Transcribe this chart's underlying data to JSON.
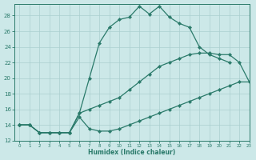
{
  "xlabel": "Humidex (Indice chaleur)",
  "bg_color": "#cce8e8",
  "line_color": "#2a7a6a",
  "grid_color": "#aacfcf",
  "xlim": [
    -0.5,
    23
  ],
  "ylim": [
    12,
    29.5
  ],
  "xticks": [
    0,
    1,
    2,
    3,
    4,
    5,
    6,
    7,
    8,
    9,
    10,
    11,
    12,
    13,
    14,
    15,
    16,
    17,
    18,
    19,
    20,
    21,
    22,
    23
  ],
  "yticks": [
    12,
    14,
    16,
    18,
    20,
    22,
    24,
    26,
    28
  ],
  "line1_x": [
    0,
    1,
    2,
    3,
    4,
    5,
    6,
    7,
    8,
    9,
    10,
    11,
    12,
    13,
    14,
    15,
    16,
    17,
    18,
    19,
    20,
    21
  ],
  "line1_y": [
    14,
    14,
    13,
    13,
    13,
    13,
    15.5,
    20,
    24.5,
    26.5,
    27.5,
    27.8,
    29.2,
    28.2,
    29.2,
    27.8,
    27,
    26.5,
    24,
    23,
    22.5,
    22
  ],
  "line2_x": [
    0,
    1,
    2,
    3,
    4,
    5,
    6,
    7,
    8,
    9,
    10,
    11,
    12,
    13,
    14,
    15,
    16,
    17,
    18,
    19,
    20,
    21,
    22,
    23
  ],
  "line2_y": [
    14,
    14,
    13,
    13,
    13,
    13,
    15.5,
    16,
    16.5,
    17,
    17.5,
    18.5,
    19.5,
    20.5,
    21.5,
    22,
    22.5,
    23,
    23.2,
    23.2,
    23,
    23,
    22,
    19.5
  ],
  "line3_x": [
    0,
    1,
    2,
    3,
    4,
    5,
    6,
    7,
    8,
    9,
    10,
    11,
    12,
    13,
    14,
    15,
    16,
    17,
    18,
    19,
    20,
    21,
    22,
    23
  ],
  "line3_y": [
    14,
    14,
    13,
    13,
    13,
    13,
    15,
    13.5,
    13.2,
    13.2,
    13.5,
    14,
    14.5,
    15,
    15.5,
    16,
    16.5,
    17,
    17.5,
    18,
    18.5,
    19,
    19.5,
    19.5
  ]
}
